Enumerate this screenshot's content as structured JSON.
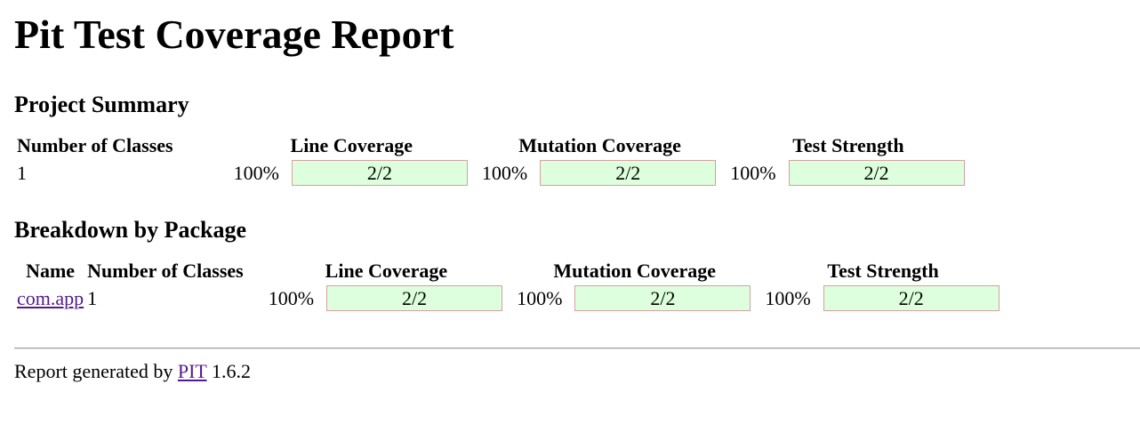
{
  "title": "Pit Test Coverage Report",
  "project_summary": {
    "heading": "Project Summary",
    "headers": {
      "classes": "Number of Classes",
      "line": "Line Coverage",
      "mutation": "Mutation Coverage",
      "strength": "Test Strength"
    },
    "row": {
      "classes": "1",
      "line": {
        "percent": "100%",
        "legend": "2/2",
        "fraction": 1.0
      },
      "mutation": {
        "percent": "100%",
        "legend": "2/2",
        "fraction": 1.0
      },
      "strength": {
        "percent": "100%",
        "legend": "2/2",
        "fraction": 1.0
      }
    }
  },
  "breakdown": {
    "heading": "Breakdown by Package",
    "headers": {
      "name": "Name",
      "classes": "Number of Classes",
      "line": "Line Coverage",
      "mutation": "Mutation Coverage",
      "strength": "Test Strength"
    },
    "rows": [
      {
        "name": "com.app",
        "classes": "1",
        "line": {
          "percent": "100%",
          "legend": "2/2",
          "fraction": 1.0
        },
        "mutation": {
          "percent": "100%",
          "legend": "2/2",
          "fraction": 1.0
        },
        "strength": {
          "percent": "100%",
          "legend": "2/2",
          "fraction": 1.0
        }
      }
    ]
  },
  "footer": {
    "prefix": "Report generated by",
    "link": "PIT",
    "version": "1.6.2"
  },
  "colors": {
    "covered_fill": "#ddffdd",
    "bar_border": "#d6a0a0",
    "link": "#551a8b"
  }
}
